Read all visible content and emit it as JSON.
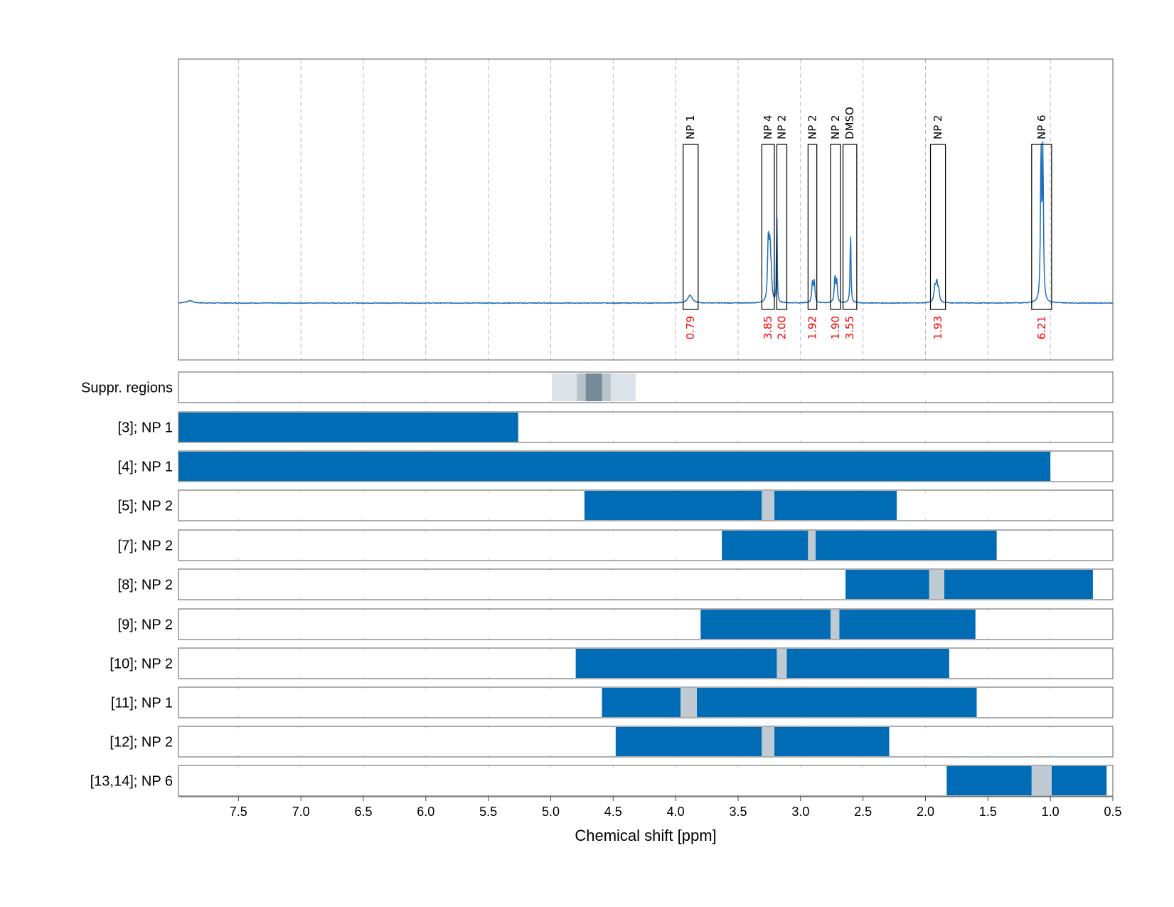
{
  "chart_data": {
    "type": "nmr_spectrum_with_integration_ranges",
    "xlabel": "Chemical shift [ppm]",
    "x_range": [
      7.98,
      0.5
    ],
    "x_ticks": [
      "7.5",
      "7.0",
      "6.5",
      "6.0",
      "5.5",
      "5.0",
      "4.5",
      "4.0",
      "3.5",
      "3.0",
      "2.5",
      "2.0",
      "1.5",
      "1.0",
      "0.5"
    ],
    "x_tick_values": [
      7.5,
      7.0,
      6.5,
      6.0,
      5.5,
      5.0,
      4.5,
      4.0,
      3.5,
      3.0,
      2.5,
      2.0,
      1.5,
      1.0,
      0.5
    ],
    "grid": "dashed vertical",
    "spectrum": {
      "baseline": 0.0,
      "y_range": [
        -0.25,
        1.0
      ],
      "peaks": [
        {
          "ppm": 7.89,
          "height": 0.01,
          "width": 0.03
        },
        {
          "ppm": 3.89,
          "height": 0.02,
          "width": 0.02
        },
        {
          "ppm": 3.88,
          "height": 0.015,
          "width": 0.02
        },
        {
          "ppm": 3.26,
          "height": 0.17,
          "width": 0.006
        },
        {
          "ppm": 3.245,
          "height": 0.21,
          "width": 0.006
        },
        {
          "ppm": 3.255,
          "height": 0.14,
          "width": 0.006
        },
        {
          "ppm": 3.235,
          "height": 0.1,
          "width": 0.006
        },
        {
          "ppm": 3.19,
          "height": 0.43,
          "width": 0.003
        },
        {
          "ppm": 2.905,
          "height": 0.09,
          "width": 0.006
        },
        {
          "ppm": 2.89,
          "height": 0.09,
          "width": 0.006
        },
        {
          "ppm": 2.725,
          "height": 0.11,
          "width": 0.006
        },
        {
          "ppm": 2.71,
          "height": 0.09,
          "width": 0.006
        },
        {
          "ppm": 2.6,
          "height": 0.32,
          "width": 0.004
        },
        {
          "ppm": 1.925,
          "height": 0.06,
          "width": 0.008
        },
        {
          "ppm": 1.91,
          "height": 0.08,
          "width": 0.008
        },
        {
          "ppm": 1.895,
          "height": 0.05,
          "width": 0.008
        },
        {
          "ppm": 1.075,
          "height": 0.66,
          "width": 0.005
        },
        {
          "ppm": 1.06,
          "height": 0.64,
          "width": 0.005
        }
      ]
    },
    "peak_boxes": [
      {
        "label": "NP 1",
        "integral": "0.79",
        "ppm_start": 3.94,
        "ppm_end": 3.82
      },
      {
        "label": "NP 4",
        "integral": "3.85",
        "ppm_start": 3.31,
        "ppm_end": 3.21
      },
      {
        "label": "NP 2",
        "integral": "2.00",
        "ppm_start": 3.19,
        "ppm_end": 3.11
      },
      {
        "label": "NP 2",
        "integral": "1.92",
        "ppm_start": 2.94,
        "ppm_end": 2.87
      },
      {
        "label": "NP 2",
        "integral": "1.90",
        "ppm_start": 2.76,
        "ppm_end": 2.68
      },
      {
        "label": "DMSO",
        "integral": "3.55",
        "ppm_start": 2.66,
        "ppm_end": 2.55
      },
      {
        "label": "NP 2",
        "integral": "1.93",
        "ppm_start": 1.96,
        "ppm_end": 1.84
      },
      {
        "label": "NP 6",
        "integral": "6.21",
        "ppm_start": 1.15,
        "ppm_end": 0.99
      }
    ],
    "rows": [
      {
        "label": "Suppr. regions",
        "type": "suppression",
        "regions": [
          {
            "ppm_start": 4.99,
            "ppm_end": 4.32,
            "level": "light"
          },
          {
            "ppm_start": 4.79,
            "ppm_end": 4.52,
            "level": "medium"
          },
          {
            "ppm_start": 4.72,
            "ppm_end": 4.59,
            "level": "dark"
          }
        ]
      },
      {
        "label": "[3]; NP 1",
        "ranges": [
          [
            7.98,
            5.26
          ]
        ],
        "gaps": []
      },
      {
        "label": "[4]; NP 1",
        "ranges": [
          [
            7.98,
            1.0
          ]
        ],
        "gaps": []
      },
      {
        "label": "[5]; NP 2",
        "ranges": [
          [
            4.73,
            3.31
          ],
          [
            3.21,
            2.23
          ]
        ],
        "gaps": [
          [
            3.31,
            3.21
          ]
        ]
      },
      {
        "label": "[7]; NP 2",
        "ranges": [
          [
            3.63,
            2.94
          ],
          [
            2.88,
            1.43
          ]
        ],
        "gaps": [
          [
            2.94,
            2.88
          ]
        ]
      },
      {
        "label": "[8]; NP 2",
        "ranges": [
          [
            2.64,
            1.97
          ],
          [
            1.85,
            0.66
          ]
        ],
        "gaps": [
          [
            1.97,
            1.85
          ]
        ]
      },
      {
        "label": "[9]; NP 2",
        "ranges": [
          [
            3.8,
            2.76
          ],
          [
            2.69,
            1.6
          ]
        ],
        "gaps": [
          [
            2.76,
            2.69
          ]
        ]
      },
      {
        "label": "[10]; NP 2",
        "ranges": [
          [
            4.8,
            3.19
          ],
          [
            3.11,
            1.81
          ]
        ],
        "gaps": [
          [
            3.19,
            3.11
          ]
        ]
      },
      {
        "label": "[11]; NP 1",
        "ranges": [
          [
            4.59,
            3.96
          ],
          [
            3.83,
            1.59
          ]
        ],
        "gaps": [
          [
            3.96,
            3.83
          ]
        ]
      },
      {
        "label": "[12]; NP 2",
        "ranges": [
          [
            4.48,
            3.31
          ],
          [
            3.21,
            2.29
          ]
        ],
        "gaps": [
          [
            3.31,
            3.21
          ]
        ]
      },
      {
        "label": "[13,14]; NP 6",
        "ranges": [
          [
            1.83,
            1.15
          ],
          [
            0.99,
            0.55
          ]
        ],
        "gaps": [
          [
            1.15,
            0.99
          ]
        ]
      }
    ],
    "colors": {
      "spectrum": "#1f6fba",
      "range_fill": "#006cb6",
      "gap_fill": "#c0cad2",
      "suppr_light": "#dbe2e8",
      "suppr_medium": "#b8c2cb",
      "suppr_dark": "#778996",
      "integral_text": "#ff0000",
      "grid": "#b8b8b8",
      "frame": "#777777"
    }
  }
}
